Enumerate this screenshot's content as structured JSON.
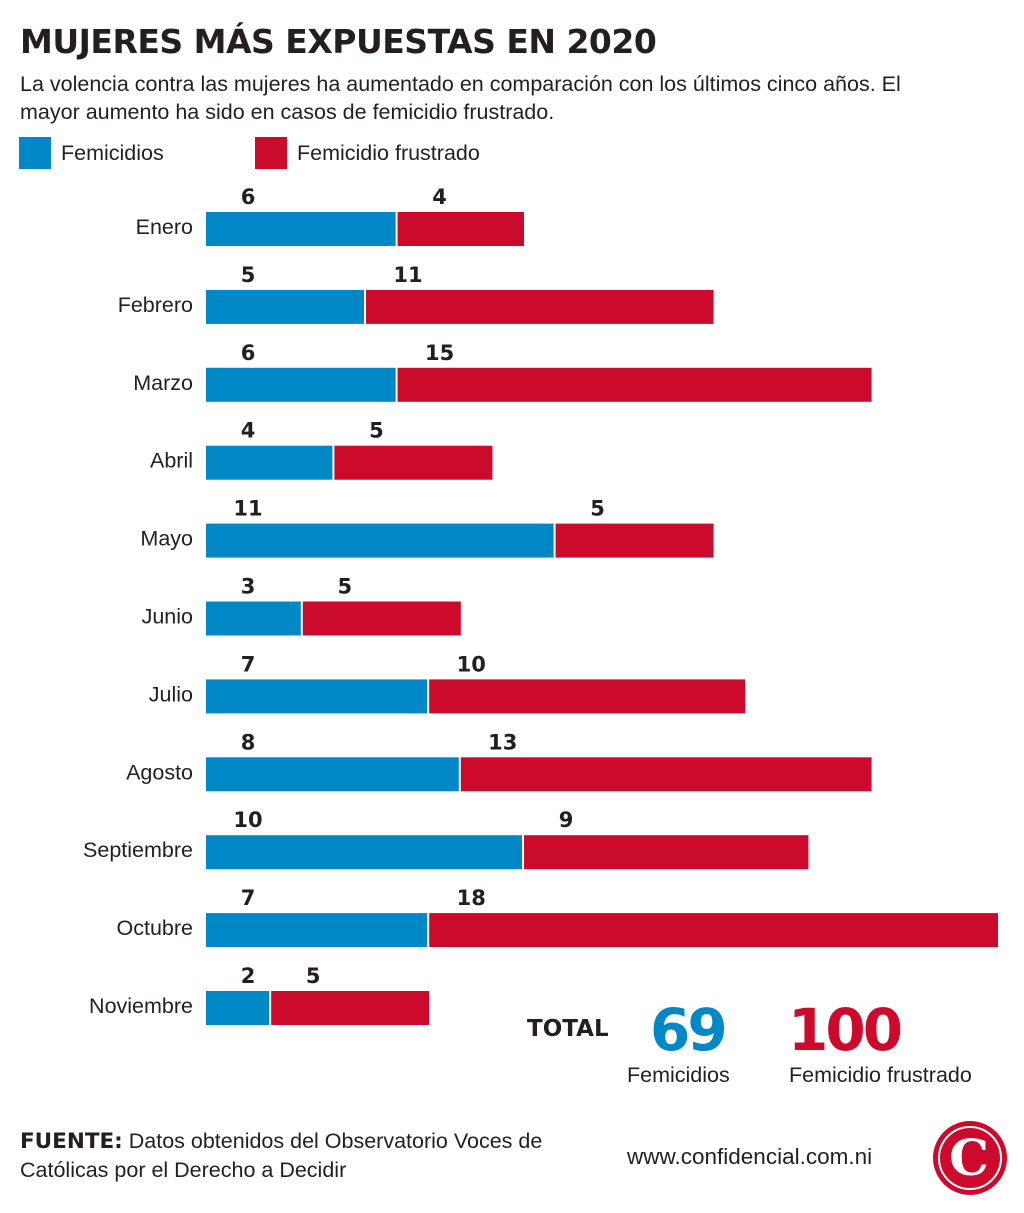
{
  "title": "MUJERES MÁS EXPUESTAS EN 2020",
  "subtitle": "La volencia contra las mujeres ha aumentado en comparación con los últimos cinco años. El mayor aumento ha sido en casos de femicidio frustrado.",
  "colors": {
    "femicidios": "#0088c6",
    "frustrado": "#cc0a2b",
    "text": "#231f20"
  },
  "chart_data": {
    "type": "bar",
    "orientation": "horizontal",
    "stacked": true,
    "legend_position": "top-left",
    "grid": false,
    "categories": [
      "Enero",
      "Febrero",
      "Marzo",
      "Abril",
      "Mayo",
      "Junio",
      "Julio",
      "Agosto",
      "Septiembre",
      "Octubre",
      "Noviembre"
    ],
    "series": [
      {
        "name": "Femicidios",
        "values": [
          6,
          5,
          6,
          4,
          11,
          3,
          7,
          8,
          10,
          7,
          2
        ]
      },
      {
        "name": "Femicidio frustrado",
        "values": [
          4,
          11,
          15,
          5,
          5,
          5,
          10,
          13,
          9,
          18,
          5
        ]
      }
    ],
    "xlim": [
      0,
      25
    ]
  },
  "totals": {
    "label": "TOTAL",
    "femicidios": {
      "value": "69",
      "label": "Femicidios"
    },
    "frustrado": {
      "value": "100",
      "label": "Femicidio frustrado"
    }
  },
  "source": {
    "label": "FUENTE:",
    "text": " Datos obtenidos del Observatorio Voces de Católicas por el Derecho a Decidir"
  },
  "website": "www.confidencial.com.ni",
  "logo": {
    "icon": "confidencial-c-logo",
    "letter": "C"
  }
}
